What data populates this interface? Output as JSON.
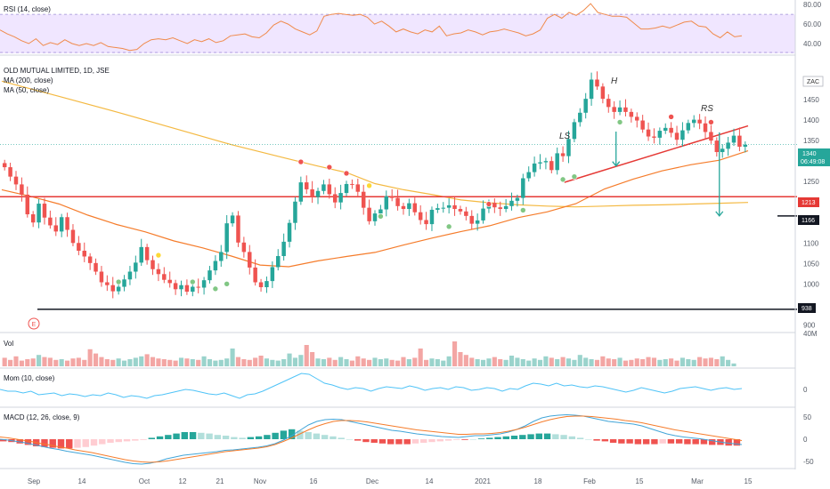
{
  "panes": {
    "rsi_label": "RSI (14, close)",
    "main_labels": [
      "OLD MUTUAL LIMITED, 1D, JSE",
      "MA (200, close)",
      "MA (50, close)"
    ],
    "vol_label": "Vol",
    "mom_label": "Mom (10, close)",
    "macd_label": "MACD (12, 26, close, 9)"
  },
  "annotations": {
    "left_shoulder": "LS",
    "head": "H",
    "right_shoulder": "RS",
    "currency": "ZAC",
    "earnings_badge": "E"
  },
  "price_tags": {
    "last": "1340",
    "countdown": "06:49:08",
    "support_1213": "1213",
    "target_1166": "1166",
    "low_938": "938"
  },
  "colors": {
    "up": "#26a69a",
    "down": "#ef5350",
    "ma200": "#f4b942",
    "ma50": "#f57c2b",
    "neckline": "#e53935",
    "rsi_line": "#f08a4b",
    "rsi_band": "#f0e6ff",
    "mom_line": "#4fc3f7",
    "macd_line": "#42a5d8",
    "signal_line": "#f57c2b",
    "marker_red": "#ef5350",
    "marker_green": "#81c784",
    "marker_yellow": "#fdd835"
  },
  "chart_data": [
    {
      "type": "line",
      "pane": "rsi",
      "y_ticks": [
        "80.00",
        "60.00",
        "40.00"
      ],
      "ylim": [
        30,
        82
      ],
      "band": [
        30,
        70
      ],
      "series": [
        {
          "name": "RSI (14, close)",
          "values": [
            54,
            50,
            47,
            43,
            40,
            45,
            38,
            41,
            39,
            44,
            40,
            38,
            40,
            38,
            41,
            37,
            36,
            35,
            33,
            34,
            40,
            44,
            45,
            44,
            46,
            43,
            40,
            44,
            42,
            45,
            41,
            43,
            48,
            49,
            50,
            47,
            46,
            51,
            59,
            63,
            60,
            55,
            52,
            49,
            53,
            68,
            70,
            71,
            70,
            69,
            70,
            67,
            60,
            63,
            58,
            52,
            55,
            52,
            50,
            54,
            52,
            58,
            48,
            50,
            51,
            54,
            52,
            49,
            52,
            53,
            55,
            53,
            51,
            48,
            50,
            54,
            66,
            70,
            66,
            72,
            69,
            74,
            81,
            72,
            70,
            68,
            68,
            67,
            61,
            55,
            55,
            56,
            58,
            56,
            59,
            62,
            63,
            58,
            57,
            50,
            46,
            52,
            47,
            48
          ]
        }
      ]
    },
    {
      "type": "candlestick",
      "pane": "price",
      "y_ticks": [
        "1500",
        "1450",
        "1400",
        "1350",
        "1300",
        "1250",
        "1200",
        "1150",
        "1100",
        "1050",
        "1000",
        "900"
      ],
      "ylim": [
        890,
        1550
      ],
      "x_ticks": [
        "Sep",
        "14",
        "Oct",
        "12",
        "21",
        "Nov",
        "16",
        "Dec",
        "14",
        "2021",
        "18",
        "Feb",
        "15",
        "Mar",
        "15"
      ],
      "close": [
        1285,
        1262,
        1243,
        1218,
        1170,
        1150,
        1196,
        1162,
        1143,
        1128,
        1163,
        1132,
        1100,
        1081,
        1067,
        1051,
        1030,
        1004,
        997,
        982,
        993,
        1011,
        1030,
        1052,
        1090,
        1058,
        1036,
        1024,
        1010,
        1002,
        987,
        997,
        981,
        993,
        991,
        1009,
        1033,
        1056,
        1078,
        1148,
        1167,
        1101,
        1078,
        1040,
        1004,
        992,
        1007,
        1041,
        1068,
        1103,
        1149,
        1201,
        1248,
        1231,
        1212,
        1227,
        1243,
        1219,
        1199,
        1222,
        1244,
        1243,
        1225,
        1186,
        1153,
        1172,
        1182,
        1214,
        1210,
        1190,
        1183,
        1197,
        1175,
        1156,
        1146,
        1181,
        1185,
        1186,
        1192,
        1183,
        1177,
        1166,
        1147,
        1155,
        1184,
        1198,
        1187,
        1183,
        1190,
        1203,
        1210,
        1258,
        1273,
        1294,
        1297,
        1300,
        1278,
        1319,
        1312,
        1354,
        1395,
        1418,
        1452,
        1499,
        1482,
        1452,
        1432,
        1420,
        1431,
        1420,
        1408,
        1399,
        1377,
        1360,
        1357,
        1374,
        1381,
        1369,
        1352,
        1375,
        1393,
        1401,
        1392,
        1371,
        1350,
        1322,
        1330,
        1345,
        1362,
        1335,
        1340
      ],
      "series": [
        {
          "name": "MA (200, close)",
          "points": [
            [
              0,
              1495
            ],
            [
              10,
              1458
            ],
            [
              20,
              1420
            ],
            [
              30,
              1380
            ],
            [
              40,
              1340
            ],
            [
              50,
              1305
            ],
            [
              55,
              1288
            ],
            [
              60,
              1272
            ],
            [
              65,
              1245
            ],
            [
              70,
              1230
            ],
            [
              75,
              1218
            ],
            [
              80,
              1205
            ],
            [
              85,
              1198
            ],
            [
              90,
              1193
            ],
            [
              95,
              1190
            ],
            [
              100,
              1188
            ],
            [
              105,
              1190
            ],
            [
              110,
              1192
            ],
            [
              115,
              1193
            ],
            [
              120,
              1195
            ],
            [
              125,
              1197
            ],
            [
              130,
              1199
            ]
          ]
        },
        {
          "name": "MA (50, close)",
          "points": [
            [
              0,
              1230
            ],
            [
              5,
              1214
            ],
            [
              10,
              1195
            ],
            [
              15,
              1168
            ],
            [
              20,
              1145
            ],
            [
              25,
              1127
            ],
            [
              30,
              1105
            ],
            [
              35,
              1088
            ],
            [
              40,
              1068
            ],
            [
              45,
              1046
            ],
            [
              50,
              1042
            ],
            [
              55,
              1056
            ],
            [
              60,
              1067
            ],
            [
              65,
              1077
            ],
            [
              70,
              1095
            ],
            [
              75,
              1112
            ],
            [
              80,
              1128
            ],
            [
              85,
              1142
            ],
            [
              90,
              1162
            ],
            [
              95,
              1176
            ],
            [
              100,
              1196
            ],
            [
              105,
              1232
            ],
            [
              110,
              1256
            ],
            [
              115,
              1276
            ],
            [
              120,
              1291
            ],
            [
              125,
              1302
            ],
            [
              130,
              1325
            ]
          ]
        }
      ],
      "lines": [
        {
          "name": "support",
          "y": 1213
        },
        {
          "name": "target",
          "y": 1166
        },
        {
          "name": "low",
          "y": 938
        },
        {
          "name": "neckline",
          "from": [
            98,
            1248
          ],
          "to": [
            130,
            1386
          ]
        }
      ],
      "arrows": [
        {
          "x": 107,
          "from": 1372,
          "to": 1288
        },
        {
          "x": 125,
          "from": 1370,
          "to": 1166
        }
      ]
    },
    {
      "type": "bar",
      "pane": "volume",
      "y_ticks": [
        "40M"
      ],
      "ylim": [
        0,
        45
      ],
      "values": [
        12,
        9,
        14,
        8,
        10,
        11,
        16,
        13,
        12,
        9,
        10,
        8,
        11,
        12,
        9,
        24,
        18,
        13,
        10,
        9,
        11,
        8,
        10,
        12,
        14,
        17,
        13,
        11,
        10,
        9,
        8,
        12,
        11,
        10,
        9,
        14,
        10,
        8,
        9,
        11,
        25,
        13,
        10,
        9,
        12,
        15,
        11,
        9,
        8,
        10,
        18,
        12,
        16,
        30,
        20,
        11,
        10,
        12,
        9,
        13,
        10,
        8,
        14,
        11,
        9,
        12,
        10,
        11,
        9,
        8,
        13,
        10,
        12,
        25,
        9,
        11,
        10,
        8,
        14,
        35,
        20,
        16,
        12,
        10,
        9,
        11,
        13,
        10,
        9,
        15,
        12,
        10,
        8,
        11,
        9,
        14,
        12,
        10,
        13,
        11,
        9,
        16,
        12,
        10,
        9,
        14,
        11,
        10,
        12,
        8,
        9,
        11,
        10,
        13,
        12,
        9,
        10,
        11,
        8,
        12,
        10,
        9,
        13,
        11,
        12,
        10,
        14,
        9,
        4
      ]
    },
    {
      "type": "line",
      "pane": "momentum",
      "y_ticks": [
        "0"
      ],
      "ylim": [
        -1,
        1
      ],
      "series": [
        {
          "name": "Mom (10, close)",
          "values": [
            0,
            -0.1,
            -0.1,
            -0.2,
            -0.1,
            -0.3,
            -0.25,
            -0.2,
            -0.35,
            -0.25,
            -0.3,
            -0.4,
            -0.3,
            -0.35,
            -0.2,
            -0.3,
            -0.45,
            -0.35,
            -0.4,
            -0.5,
            -0.35,
            -0.3,
            -0.2,
            -0.1,
            0.0,
            -0.05,
            -0.15,
            -0.25,
            -0.3,
            -0.2,
            -0.35,
            -0.5,
            -0.3,
            -0.25,
            -0.1,
            0.1,
            0.3,
            0.5,
            0.7,
            0.9,
            0.85,
            0.6,
            0.35,
            0.25,
            0.1,
            0.0,
            0.1,
            0.05,
            -0.1,
            0.05,
            0.15,
            0.1,
            0.05,
            0.2,
            0.1,
            -0.05,
            0.05,
            0.1,
            0.0,
            0.15,
            0.1,
            -0.05,
            0.0,
            0.1,
            0.05,
            -0.1,
            0.05,
            0.0,
            0.2,
            0.35,
            0.3,
            0.2,
            0.35,
            0.2,
            0.25,
            0.15,
            0.1,
            0.2,
            0.15,
            0.05,
            -0.05,
            -0.15,
            -0.05,
            0.1,
            0.0,
            -0.1,
            -0.2,
            -0.1,
            0.05,
            0.1,
            0.15,
            0.05,
            -0.05,
            0.05,
            0.1,
            0.0,
            0.05
          ]
        }
      ]
    },
    {
      "type": "line",
      "pane": "macd",
      "y_ticks": [
        "50",
        "0",
        "-50"
      ],
      "ylim": [
        -60,
        60
      ],
      "series": [
        {
          "name": "MACD",
          "values": [
            0,
            -2,
            -5,
            -8,
            -12,
            -16,
            -20,
            -23,
            -27,
            -30,
            -33,
            -36,
            -40,
            -44,
            -48,
            -52,
            -55,
            -56,
            -54,
            -50,
            -44,
            -40,
            -36,
            -34,
            -32,
            -30,
            -28,
            -25,
            -24,
            -22,
            -20,
            -18,
            -15,
            -10,
            -2,
            8,
            20,
            32,
            40,
            44,
            45,
            44,
            40,
            36,
            32,
            28,
            24,
            20,
            18,
            15,
            12,
            10,
            8,
            6,
            5,
            4,
            6,
            8,
            8,
            10,
            12,
            16,
            22,
            30,
            40,
            48,
            52,
            54,
            55,
            54,
            52,
            48,
            44,
            40,
            38,
            36,
            34,
            30,
            24,
            18,
            12,
            8,
            5,
            3,
            1,
            -2,
            -5,
            -8,
            -10,
            -12
          ]
        },
        {
          "name": "Signal",
          "values": [
            5,
            3,
            0,
            -3,
            -6,
            -10,
            -13,
            -17,
            -20,
            -24,
            -27,
            -30,
            -34,
            -38,
            -42,
            -46,
            -49,
            -51,
            -52,
            -51,
            -49,
            -46,
            -43,
            -40,
            -37,
            -34,
            -31,
            -28,
            -26,
            -24,
            -22,
            -20,
            -17,
            -12,
            -5,
            3,
            12,
            21,
            29,
            35,
            40,
            42,
            42,
            41,
            39,
            36,
            33,
            30,
            27,
            24,
            21,
            19,
            17,
            15,
            13,
            11,
            11,
            12,
            12,
            13,
            15,
            18,
            22,
            27,
            33,
            39,
            44,
            48,
            51,
            52,
            52,
            51,
            49,
            47,
            45,
            42,
            40,
            37,
            33,
            29,
            25,
            21,
            18,
            15,
            12,
            9,
            6,
            3,
            0,
            -3
          ]
        }
      ],
      "histogram": [
        -3,
        -4,
        -6,
        -8,
        -10,
        -11,
        -12,
        -13,
        -13,
        -12,
        -11,
        -9,
        -7,
        -5,
        -4,
        -3,
        -2,
        -1,
        2,
        4,
        6,
        8,
        10,
        10,
        9,
        8,
        6,
        5,
        3,
        2,
        3,
        4,
        6,
        9,
        12,
        14,
        12,
        10,
        8,
        6,
        4,
        2,
        0,
        -2,
        -4,
        -5,
        -6,
        -7,
        -7,
        -7,
        -6,
        -5,
        -4,
        -3,
        -2,
        -1,
        -1,
        0,
        1,
        2,
        3,
        4,
        5,
        6,
        7,
        8,
        8,
        7,
        6,
        4,
        2,
        0,
        -2,
        -3,
        -5,
        -6,
        -6,
        -7,
        -7,
        -7,
        -6,
        -6,
        -6,
        -7,
        -7,
        -7,
        -8,
        -8,
        -9,
        -9
      ]
    }
  ]
}
